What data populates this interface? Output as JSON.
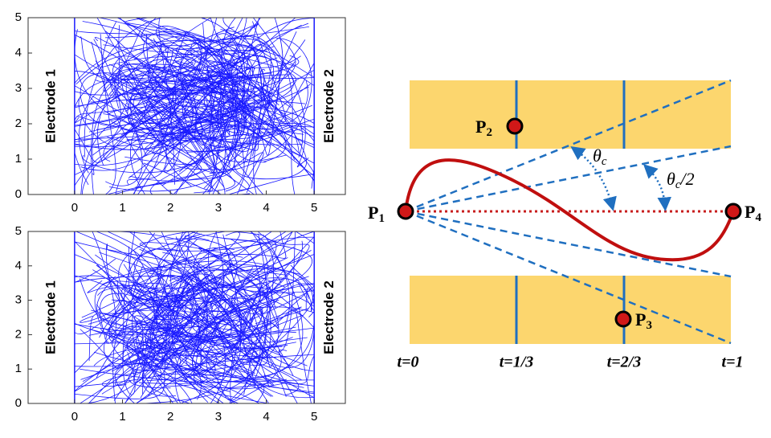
{
  "plots": [
    {
      "xlim": [
        -0.97,
        5.65
      ],
      "ylim": [
        0,
        5
      ],
      "xticks": [
        0,
        1,
        2,
        3,
        4,
        5
      ],
      "yticks": [
        0,
        1,
        2,
        3,
        4,
        5
      ],
      "left_label": "Electrode 1",
      "right_label": "Electrode 2"
    },
    {
      "xlim": [
        -0.97,
        5.65
      ],
      "ylim": [
        0,
        5
      ],
      "xticks": [
        0,
        1,
        2,
        3,
        4,
        5
      ],
      "yticks": [
        0,
        1,
        2,
        3,
        4,
        5
      ],
      "left_label": "Electrode 1",
      "right_label": "Electrode 2"
    }
  ],
  "diagram": {
    "points": [
      {
        "main": "P",
        "sub": "1"
      },
      {
        "main": "P",
        "sub": "2"
      },
      {
        "main": "P",
        "sub": "3"
      },
      {
        "main": "P",
        "sub": "4"
      }
    ],
    "angle_full": {
      "main": "θ",
      "sub": "c"
    },
    "angle_half": {
      "main": "θ",
      "sub": "c",
      "rest": "/2"
    },
    "times": [
      "t=0",
      "t=1/3",
      "t=2/3",
      "t=1"
    ]
  }
}
